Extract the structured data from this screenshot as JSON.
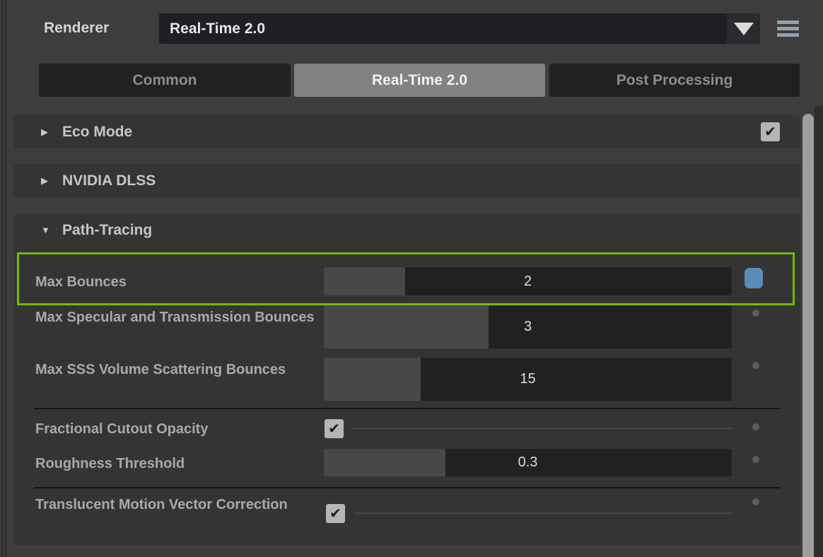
{
  "header": {
    "renderer_label": "Renderer",
    "renderer_dropdown": {
      "value": "Real-Time 2.0"
    }
  },
  "tabs": {
    "common": "Common",
    "realtime": "Real-Time 2.0",
    "post": "Post Processing",
    "active_tab": "Real-Time 2.0"
  },
  "sections": {
    "eco": {
      "title": "Eco Mode",
      "collapsed": true,
      "checkbox_checked": true
    },
    "dlss": {
      "title": "NVIDIA DLSS",
      "collapsed": true
    },
    "pt": {
      "title": "Path-Tracing",
      "collapsed": false
    }
  },
  "pt_rows": {
    "max_bounces": {
      "label": "Max Bounces",
      "value": "2",
      "fill": "19.9%",
      "modified": true,
      "highlighted": true
    },
    "max_spec": {
      "label": "Max Specular and Transmission Bounces",
      "value": "3",
      "fill": "40.3%",
      "modified": false
    },
    "max_sss": {
      "label": "Max SSS Volume Scattering Bounces",
      "value": "15",
      "fill": "23.7%",
      "modified": false
    },
    "cutout": {
      "label": "Fractional Cutout Opacity",
      "checked": true,
      "modified": false
    },
    "roughness": {
      "label": "Roughness Threshold",
      "value": "0.3",
      "fill": "29.8%",
      "modified": false
    },
    "translucent": {
      "label": "Translucent Motion Vector Correction",
      "checked": true,
      "modified": false
    }
  },
  "glyphs": {
    "check": "✔",
    "collapsed_arrow": "▶",
    "expanded_arrow": "▼",
    "dropdown_arrow": "▼",
    "menu_icon": "hamburger-menu",
    "modified_indicator": "blue-square",
    "default_indicator": "gray-dot"
  },
  "colors": {
    "highlight_green": "#76b900",
    "modified_blue": "#5b8db8",
    "active_tab_bg": "#828282",
    "panel_bg": "#3d3d3d",
    "field_bg": "#1f2123"
  }
}
